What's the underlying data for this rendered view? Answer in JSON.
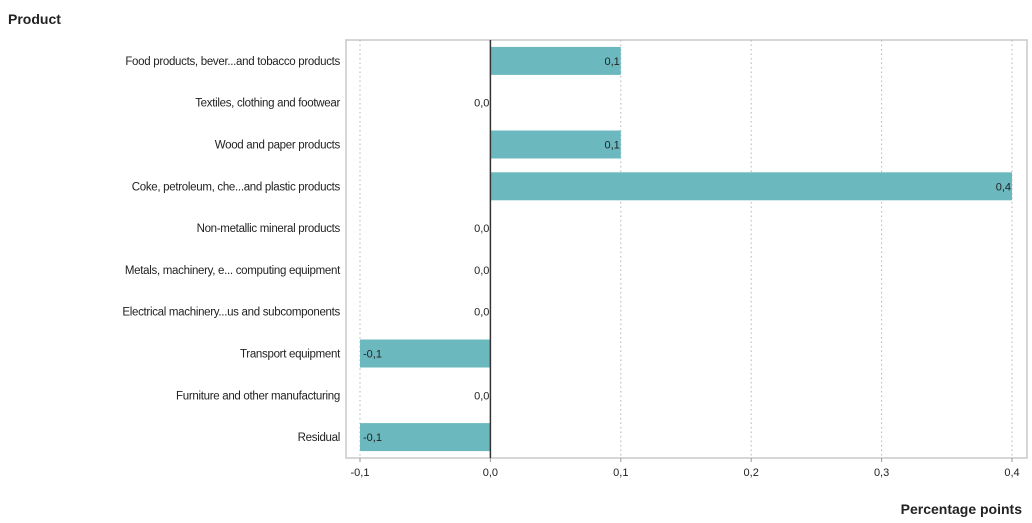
{
  "chart_data": {
    "type": "bar",
    "orientation": "horizontal",
    "title": "Product",
    "xlabel": "Percentage points",
    "ylabel": "",
    "categories": [
      "Food products, bever...and tobacco products",
      "Textiles, clothing and footwear",
      "Wood and paper products",
      "Coke, petroleum, che...and plastic products",
      "Non-metallic mineral products",
      "Metals, machinery, e... computing equipment",
      "Electrical machinery...us and subcomponents",
      "Transport equipment",
      "Furniture and other manufacturing",
      "Residual"
    ],
    "values": [
      0.1,
      0.0,
      0.1,
      0.4,
      0.0,
      0.0,
      0.0,
      -0.1,
      0.0,
      -0.1
    ],
    "data_labels": [
      "0,1",
      "0,0",
      "0,1",
      "0,4",
      "0,0",
      "0,0",
      "0,0",
      "-0,1",
      "0,0",
      "-0,1"
    ],
    "xlim": [
      -0.1,
      0.4
    ],
    "xticks": [
      -0.1,
      0.0,
      0.1,
      0.2,
      0.3,
      0.4
    ],
    "xtick_labels": [
      "-0,1",
      "0,0",
      "0,1",
      "0,2",
      "0,3",
      "0,4"
    ],
    "grid": "vertical dotted",
    "bar_color": "#6bb8bf",
    "zero_line_color": "#333333",
    "frame_color": "#c8c8c8"
  }
}
